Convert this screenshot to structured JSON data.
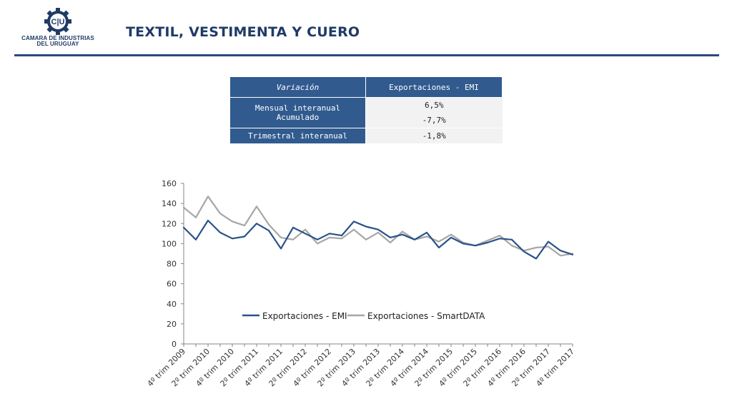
{
  "header": {
    "logo_mark": "C|U",
    "org_name_line1": "CAMARA DE INDUSTRIAS",
    "org_name_line2": "DEL URUGUAY",
    "title": "TEXTIL, VESTIMENTA Y CUERO",
    "colors": {
      "primary": "#1f3b67",
      "rule": "#2b4b78"
    }
  },
  "summary_table": {
    "header_col1": "Variación",
    "header_col2": "Exportaciones - EMI",
    "rows": [
      {
        "label": "Mensual interanual",
        "value": "6,5%"
      },
      {
        "label": "Acumulado",
        "value": "-7,7%"
      },
      {
        "label": "Trimestral interanual",
        "value": "-1,8%"
      }
    ]
  },
  "chart_data": {
    "type": "line",
    "title": "",
    "xlabel": "",
    "ylabel": "",
    "ylim": [
      0,
      160
    ],
    "yticks": [
      0,
      20,
      40,
      60,
      80,
      100,
      120,
      140,
      160
    ],
    "grid": false,
    "legend_position": "bottom-center (inside plot)",
    "x_tick_labels": [
      "4º trim 2009",
      "2º trim 2010",
      "4º trim 2010",
      "2º trim 2011",
      "4º trim 2011",
      "2º trim 2012",
      "4º trim 2012",
      "2º trim 2013",
      "4º trim 2013",
      "2º trim 2014",
      "4º trim 2014",
      "2º trim 2015",
      "4º trim 2015",
      "2º trim 2016",
      "4º trim 2016",
      "2º trim 2017",
      "4º trim 2017"
    ],
    "x_points_count": 33,
    "series": [
      {
        "name": "Exportaciones - EMI",
        "color": "#2b5289",
        "values": [
          116,
          104,
          123,
          111,
          105,
          107,
          120,
          113,
          95,
          116,
          110,
          104,
          110,
          108,
          122,
          117,
          114,
          106,
          109,
          104,
          111,
          96,
          106,
          100,
          98,
          101,
          105,
          104,
          92,
          85,
          102,
          93,
          89
        ]
      },
      {
        "name": "Exportaciones - SmartDATA",
        "color": "#a6a6a6",
        "values": [
          136,
          126,
          147,
          130,
          122,
          118,
          137,
          119,
          106,
          104,
          114,
          100,
          106,
          105,
          114,
          104,
          111,
          101,
          112,
          104,
          107,
          102,
          109,
          101,
          98,
          103,
          108,
          98,
          93,
          96,
          97,
          88,
          90
        ]
      }
    ]
  }
}
